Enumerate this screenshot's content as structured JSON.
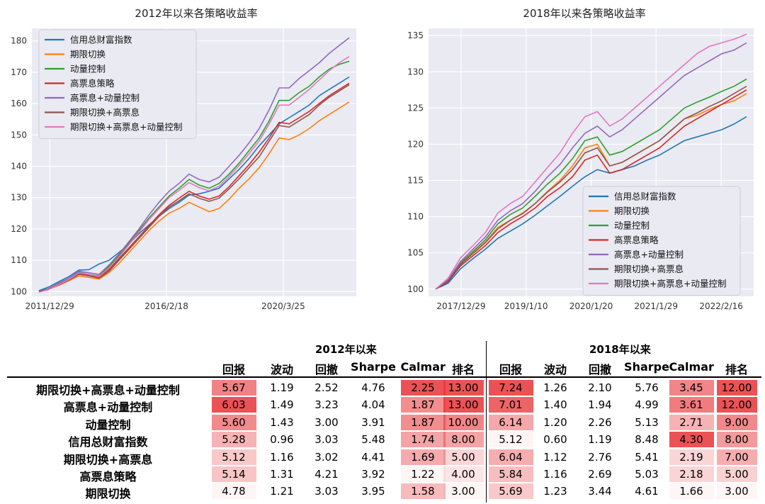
{
  "chart_data": [
    {
      "type": "line",
      "title": "2012年以来各策略收益率",
      "x_tick_labels": [
        "2011/12/29",
        "2016/2/18",
        "2020/3/25"
      ],
      "y_ticks": [
        100,
        110,
        120,
        130,
        140,
        150,
        160,
        170,
        180
      ],
      "ylim": [
        98.5,
        184
      ],
      "grid": true,
      "legend_position": "top-left",
      "series": [
        {
          "name": "信用总财富指数",
          "color": "#1f77b4",
          "values": [
            100.3,
            101.5,
            103.2,
            104.8,
            106.9,
            107.0,
            108.8,
            110.0,
            112.5,
            115.2,
            118.5,
            121.3,
            124.0,
            126.5,
            128.5,
            130.8,
            131.2,
            132.0,
            133.0,
            136.0,
            139.0,
            142.5,
            146.5,
            150.0,
            153.5,
            155.5,
            157.5,
            159.5,
            162.5,
            164.5,
            166.5,
            168.5
          ]
        },
        {
          "name": "期限切换",
          "color": "#ff7f0e",
          "values": [
            100.0,
            100.8,
            102.0,
            103.5,
            105.0,
            104.5,
            104.0,
            106.0,
            109.0,
            112.5,
            116.0,
            119.5,
            122.5,
            125.0,
            126.5,
            128.5,
            127.0,
            125.5,
            126.5,
            129.5,
            133.0,
            136.0,
            139.5,
            144.0,
            149.0,
            148.5,
            150.0,
            152.0,
            154.5,
            156.5,
            158.5,
            160.5
          ]
        },
        {
          "name": "动量控制",
          "color": "#2ca02c",
          "values": [
            100.0,
            101.0,
            102.5,
            104.0,
            106.2,
            105.5,
            105.0,
            108.0,
            111.5,
            115.5,
            119.5,
            123.5,
            127.0,
            130.5,
            133.0,
            135.8,
            134.0,
            133.0,
            134.5,
            137.5,
            141.0,
            145.0,
            149.0,
            154.5,
            161.0,
            161.0,
            163.5,
            165.5,
            168.5,
            171.0,
            172.5,
            173.5
          ]
        },
        {
          "name": "高票息策略",
          "color": "#d62728",
          "values": [
            100.1,
            100.9,
            102.2,
            103.8,
            105.8,
            105.2,
            104.5,
            107.0,
            110.5,
            114.0,
            117.5,
            121.0,
            124.5,
            127.5,
            129.8,
            132.0,
            130.5,
            129.5,
            130.5,
            133.5,
            137.0,
            140.5,
            144.5,
            149.0,
            154.0,
            153.5,
            155.5,
            157.5,
            160.0,
            162.5,
            164.5,
            166.5
          ]
        },
        {
          "name": "高票息+动量控制",
          "color": "#9467bd",
          "values": [
            100.0,
            101.0,
            102.8,
            104.3,
            106.5,
            106.0,
            105.5,
            108.5,
            112.0,
            116.0,
            120.0,
            124.5,
            128.5,
            132.0,
            134.5,
            137.5,
            135.8,
            135.0,
            136.5,
            140.0,
            143.5,
            147.5,
            152.0,
            158.0,
            165.0,
            165.0,
            168.0,
            170.5,
            173.0,
            176.0,
            178.5,
            181.0
          ]
        },
        {
          "name": "期限切换+高票息",
          "color": "#8c564b",
          "values": [
            100.0,
            100.8,
            102.2,
            103.7,
            105.5,
            105.0,
            104.3,
            106.5,
            110.0,
            113.5,
            117.0,
            120.5,
            124.0,
            127.0,
            129.0,
            131.2,
            129.8,
            128.8,
            129.8,
            132.8,
            136.0,
            139.5,
            143.0,
            148.0,
            153.0,
            152.5,
            154.5,
            156.5,
            159.5,
            162.0,
            164.0,
            166.0
          ]
        },
        {
          "name": "期限切换+高票息+动量控制",
          "color": "#e377c2",
          "values": [
            99.8,
            100.7,
            102.3,
            103.9,
            106.0,
            105.5,
            104.8,
            107.5,
            111.0,
            115.0,
            119.0,
            123.0,
            126.5,
            130.0,
            132.3,
            134.8,
            133.2,
            132.2,
            133.6,
            136.8,
            140.2,
            144.0,
            148.0,
            153.5,
            159.5,
            159.5,
            162.0,
            164.5,
            167.5,
            170.5,
            173.0,
            175.0
          ]
        }
      ]
    },
    {
      "type": "line",
      "title": "2018年以来各策略收益率",
      "x_tick_labels": [
        "2017/12/29",
        "2019/1/10",
        "2020/1/20",
        "2021/1/29",
        "2022/2/16"
      ],
      "y_ticks": [
        100,
        105,
        110,
        115,
        120,
        125,
        130,
        135
      ],
      "ylim": [
        99,
        136
      ],
      "grid": true,
      "legend_position": "bottom-right",
      "series": [
        {
          "name": "信用总财富指数",
          "color": "#1f77b4",
          "values": [
            100.0,
            100.8,
            102.8,
            104.2,
            105.5,
            107.0,
            108.0,
            109.0,
            110.2,
            111.5,
            112.8,
            114.2,
            115.5,
            116.5,
            116.0,
            116.5,
            117.0,
            117.8,
            118.5,
            119.5,
            120.5,
            121.0,
            121.5,
            122.0,
            122.8,
            123.8
          ]
        },
        {
          "name": "期限切换",
          "color": "#ff7f0e",
          "values": [
            100.0,
            101.2,
            103.5,
            105.0,
            106.5,
            108.5,
            109.5,
            110.5,
            111.8,
            113.5,
            115.0,
            117.0,
            119.5,
            120.0,
            117.0,
            117.5,
            118.5,
            119.5,
            120.5,
            122.0,
            123.5,
            124.0,
            124.8,
            125.5,
            126.0,
            127.0
          ]
        },
        {
          "name": "动量控制",
          "color": "#2ca02c",
          "values": [
            100.0,
            101.3,
            103.6,
            105.2,
            106.8,
            109.0,
            110.3,
            111.2,
            112.8,
            114.5,
            116.0,
            118.0,
            120.5,
            121.0,
            118.5,
            119.0,
            120.0,
            121.0,
            122.0,
            123.5,
            125.0,
            125.8,
            126.5,
            127.3,
            128.0,
            129.0
          ]
        },
        {
          "name": "高票息策略",
          "color": "#d62728",
          "values": [
            100.0,
            101.0,
            103.2,
            104.6,
            106.0,
            107.8,
            109.0,
            110.0,
            111.2,
            112.8,
            114.0,
            115.5,
            117.8,
            118.5,
            116.0,
            116.5,
            117.5,
            118.5,
            119.5,
            121.0,
            122.5,
            123.5,
            124.5,
            125.5,
            126.5,
            127.5
          ]
        },
        {
          "name": "高票息+动量控制",
          "color": "#9467bd",
          "values": [
            100.0,
            101.3,
            103.8,
            105.5,
            107.2,
            109.5,
            110.8,
            111.8,
            113.5,
            115.5,
            117.2,
            119.5,
            121.5,
            122.5,
            121.0,
            122.0,
            123.5,
            125.0,
            126.5,
            128.0,
            129.5,
            130.5,
            131.5,
            132.5,
            133.0,
            134.0
          ]
        },
        {
          "name": "期限切换+高票息",
          "color": "#8c564b",
          "values": [
            100.0,
            101.1,
            103.4,
            104.9,
            106.4,
            108.3,
            109.5,
            110.4,
            111.8,
            113.4,
            114.8,
            116.5,
            118.8,
            119.5,
            117.0,
            117.5,
            118.5,
            119.5,
            120.5,
            122.0,
            123.5,
            124.3,
            125.2,
            126.0,
            127.0,
            128.0
          ]
        },
        {
          "name": "期限切换+高票息+动量控制",
          "color": "#e377c2",
          "values": [
            100.0,
            101.5,
            104.3,
            106.0,
            107.8,
            110.5,
            111.8,
            112.8,
            114.8,
            116.8,
            118.8,
            121.5,
            123.8,
            124.5,
            122.5,
            123.5,
            125.0,
            126.5,
            128.0,
            129.5,
            131.0,
            132.5,
            133.5,
            134.0,
            134.5,
            135.2
          ]
        }
      ]
    }
  ],
  "table": {
    "periods": [
      "2012年以来",
      "2018年以来"
    ],
    "columns": [
      "回报",
      "波动",
      "回撤",
      "Sharpe",
      "Calmar",
      "排名"
    ],
    "rows": [
      {
        "label": "期限切换+高票息+动量控制",
        "a": [
          "5.67",
          "1.19",
          "2.52",
          "4.76",
          "2.25",
          "13.00"
        ],
        "b": [
          "7.24",
          "1.26",
          "2.10",
          "5.76",
          "3.45",
          "12.00"
        ]
      },
      {
        "label": "高票息+动量控制",
        "a": [
          "6.03",
          "1.49",
          "3.23",
          "4.04",
          "1.87",
          "13.00"
        ],
        "b": [
          "7.01",
          "1.40",
          "1.94",
          "4.99",
          "3.61",
          "12.00"
        ]
      },
      {
        "label": "动量控制",
        "a": [
          "5.60",
          "1.43",
          "3.00",
          "3.91",
          "1.87",
          "10.00"
        ],
        "b": [
          "6.14",
          "1.20",
          "2.26",
          "5.13",
          "2.71",
          "9.00"
        ]
      },
      {
        "label": "信用总财富指数",
        "a": [
          "5.28",
          "0.96",
          "3.03",
          "5.48",
          "1.74",
          "8.00"
        ],
        "b": [
          "5.12",
          "0.60",
          "1.19",
          "8.48",
          "4.30",
          "8.00"
        ]
      },
      {
        "label": "期限切换+高票息",
        "a": [
          "5.12",
          "1.16",
          "3.02",
          "4.41",
          "1.69",
          "5.00"
        ],
        "b": [
          "6.04",
          "1.12",
          "2.76",
          "5.41",
          "2.19",
          "7.00"
        ]
      },
      {
        "label": "高票息策略",
        "a": [
          "5.14",
          "1.31",
          "4.21",
          "3.92",
          "1.22",
          "4.00"
        ],
        "b": [
          "5.84",
          "1.16",
          "2.69",
          "5.03",
          "2.18",
          "5.00"
        ]
      },
      {
        "label": "期限切换",
        "a": [
          "4.78",
          "1.21",
          "3.03",
          "3.95",
          "1.58",
          "3.00"
        ],
        "b": [
          "5.69",
          "1.23",
          "3.44",
          "4.61",
          "1.66",
          "3.00"
        ]
      }
    ],
    "heat_color": "#e8383c"
  }
}
